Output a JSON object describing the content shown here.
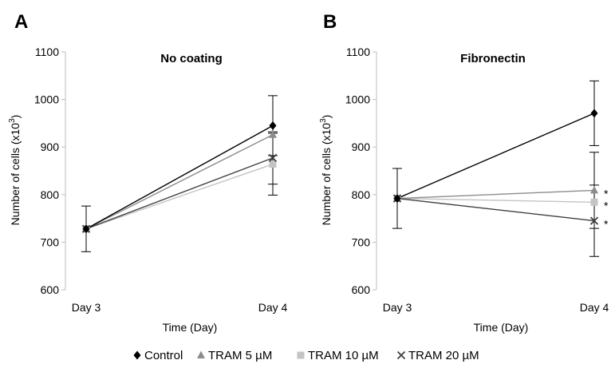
{
  "chart_data": [
    {
      "type": "line",
      "panel_label": "A",
      "title": "No coating",
      "xlabel": "Time (Day)",
      "ylabel": "Number of cells (x10",
      "ylabel_sup": "3",
      "ylabel_close": ")",
      "categories": [
        "Day 3",
        "Day 4"
      ],
      "ylim": [
        600,
        1100
      ],
      "yticks": [
        600,
        700,
        800,
        900,
        1000,
        1100
      ],
      "grid": false,
      "series": [
        {
          "name": "Control",
          "marker": "diamond",
          "color": "#000000",
          "values": [
            728,
            945
          ],
          "errors": [
            48,
            63
          ]
        },
        {
          "name": "TRAM 5 µM",
          "marker": "triangle",
          "color": "#8c8c8c",
          "values": [
            728,
            926
          ],
          "errors": [
            0,
            0
          ]
        },
        {
          "name": "TRAM 10 µM",
          "marker": "square",
          "color": "#c4c4c4",
          "values": [
            728,
            864
          ],
          "errors": [
            0,
            65
          ]
        },
        {
          "name": "TRAM 20 µM",
          "marker": "x",
          "color": "#404040",
          "values": [
            728,
            877
          ],
          "errors": [
            0,
            55
          ]
        }
      ],
      "annotations": []
    },
    {
      "type": "line",
      "panel_label": "B",
      "title": "Fibronectin",
      "xlabel": "Time (Day)",
      "ylabel": "Number of cells (x10",
      "ylabel_sup": "3",
      "ylabel_close": ")",
      "categories": [
        "Day 3",
        "Day 4"
      ],
      "ylim": [
        600,
        1100
      ],
      "yticks": [
        600,
        700,
        800,
        900,
        1000,
        1100
      ],
      "grid": false,
      "series": [
        {
          "name": "Control",
          "marker": "diamond",
          "color": "#000000",
          "values": [
            792,
            971
          ],
          "errors": [
            63,
            68
          ]
        },
        {
          "name": "TRAM 5 µM",
          "marker": "triangle",
          "color": "#8c8c8c",
          "values": [
            792,
            809
          ],
          "errors": [
            0,
            80
          ]
        },
        {
          "name": "TRAM 10 µM",
          "marker": "square",
          "color": "#c4c4c4",
          "values": [
            792,
            784
          ],
          "errors": [
            0,
            0
          ]
        },
        {
          "name": "TRAM 20 µM",
          "marker": "x",
          "color": "#404040",
          "values": [
            792,
            745
          ],
          "errors": [
            0,
            75
          ]
        }
      ],
      "annotations": [
        {
          "text": "*",
          "series": "TRAM 5 µM",
          "category": "Day 4"
        },
        {
          "text": "*",
          "series": "TRAM 10 µM",
          "category": "Day 4"
        },
        {
          "text": "*",
          "series": "TRAM 20 µM",
          "category": "Day 4"
        }
      ]
    }
  ],
  "legend": {
    "position": "bottom",
    "items": [
      {
        "marker": "diamond",
        "color": "#000000",
        "label": "Control"
      },
      {
        "marker": "triangle",
        "color": "#8c8c8c",
        "label": "TRAM 5 µM"
      },
      {
        "marker": "square",
        "color": "#c4c4c4",
        "label": "TRAM 10 µM"
      },
      {
        "marker": "x",
        "color": "#404040",
        "label": "TRAM 20 µM"
      }
    ]
  }
}
